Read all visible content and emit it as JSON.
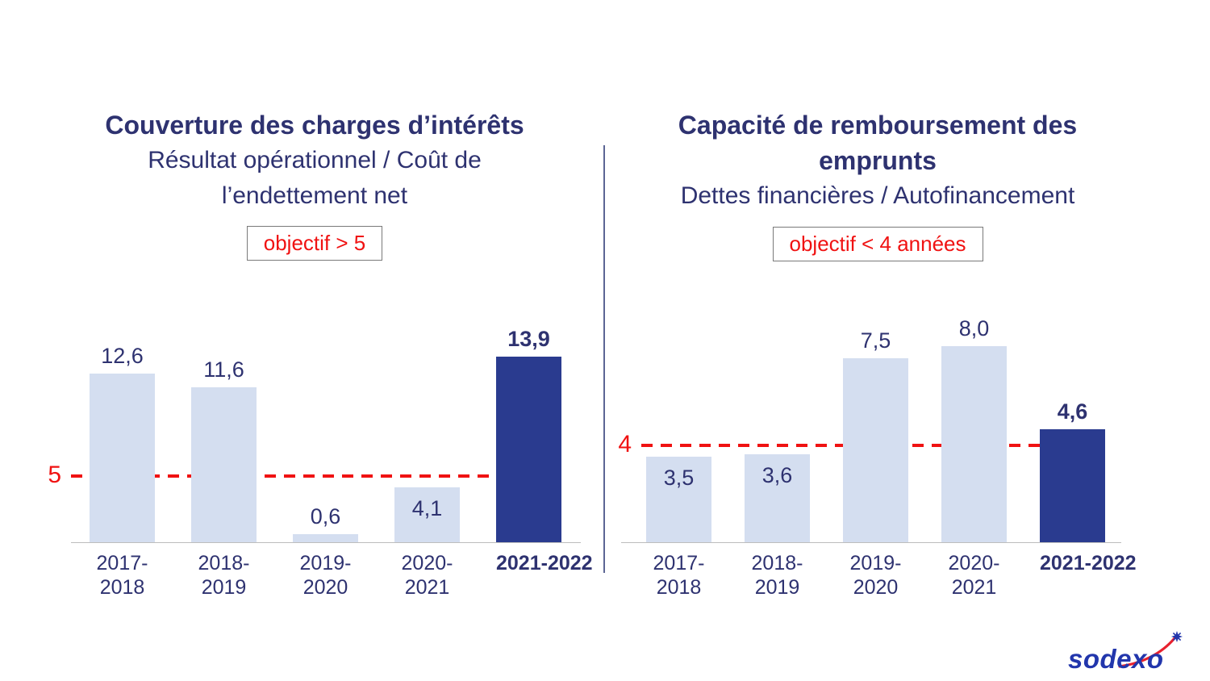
{
  "colors": {
    "title_navy": "#2e3270",
    "objective_red": "#f01212",
    "divider_blue": "#5c6594",
    "axis_gray": "#bdbdbd"
  },
  "branding": {
    "logo_text": "sodexo",
    "logo_color": "#2236ac",
    "swoosh_color": "#e8212e",
    "star_color": "#2236ac"
  },
  "chart_data": [
    {
      "type": "bar",
      "title": "Couverture des charges d’intérêts",
      "subtitle": "Résultat opérationnel / Coût de l’endettement net",
      "objective": "objectif > 5",
      "categories": [
        [
          "2017-",
          "2018"
        ],
        [
          "2018-",
          "2019"
        ],
        [
          "2019-",
          "2020"
        ],
        [
          "2020-",
          "2021"
        ],
        [
          "2021-2022"
        ]
      ],
      "values": [
        12.6,
        11.6,
        0.6,
        4.1,
        13.9
      ],
      "value_labels": [
        "12,6",
        "11,6",
        "0,6",
        "4,1",
        "13,9"
      ],
      "label_inside": [
        false,
        false,
        false,
        true,
        false
      ],
      "highlight_index": 4,
      "target_line": {
        "value": 5,
        "label": "5",
        "color": "#f01212"
      },
      "ylim": [
        0,
        15.2
      ],
      "bar_color": "#d4def0",
      "highlight_color": "#2a3b8f",
      "grid": false,
      "legend": false
    },
    {
      "type": "bar",
      "title": "Capacité de remboursement des emprunts",
      "subtitle": "Dettes financières / Autofinancement",
      "objective": "objectif < 4 années",
      "categories": [
        [
          "2017-",
          "2018"
        ],
        [
          "2018-",
          "2019"
        ],
        [
          "2019-",
          "2020"
        ],
        [
          "2020-",
          "2021"
        ],
        [
          "2021-2022"
        ]
      ],
      "values": [
        3.5,
        3.6,
        7.5,
        8.0,
        4.6
      ],
      "value_labels": [
        "3,5",
        "3,6",
        "7,5",
        "8,0",
        "4,6"
      ],
      "label_inside": [
        true,
        true,
        false,
        false,
        false
      ],
      "highlight_index": 4,
      "target_line": {
        "value": 4,
        "label": "4",
        "color": "#f01212"
      },
      "ylim": [
        0,
        8.3
      ],
      "bar_color": "#d4def0",
      "highlight_color": "#2a3b8f",
      "grid": false,
      "legend": false
    }
  ]
}
